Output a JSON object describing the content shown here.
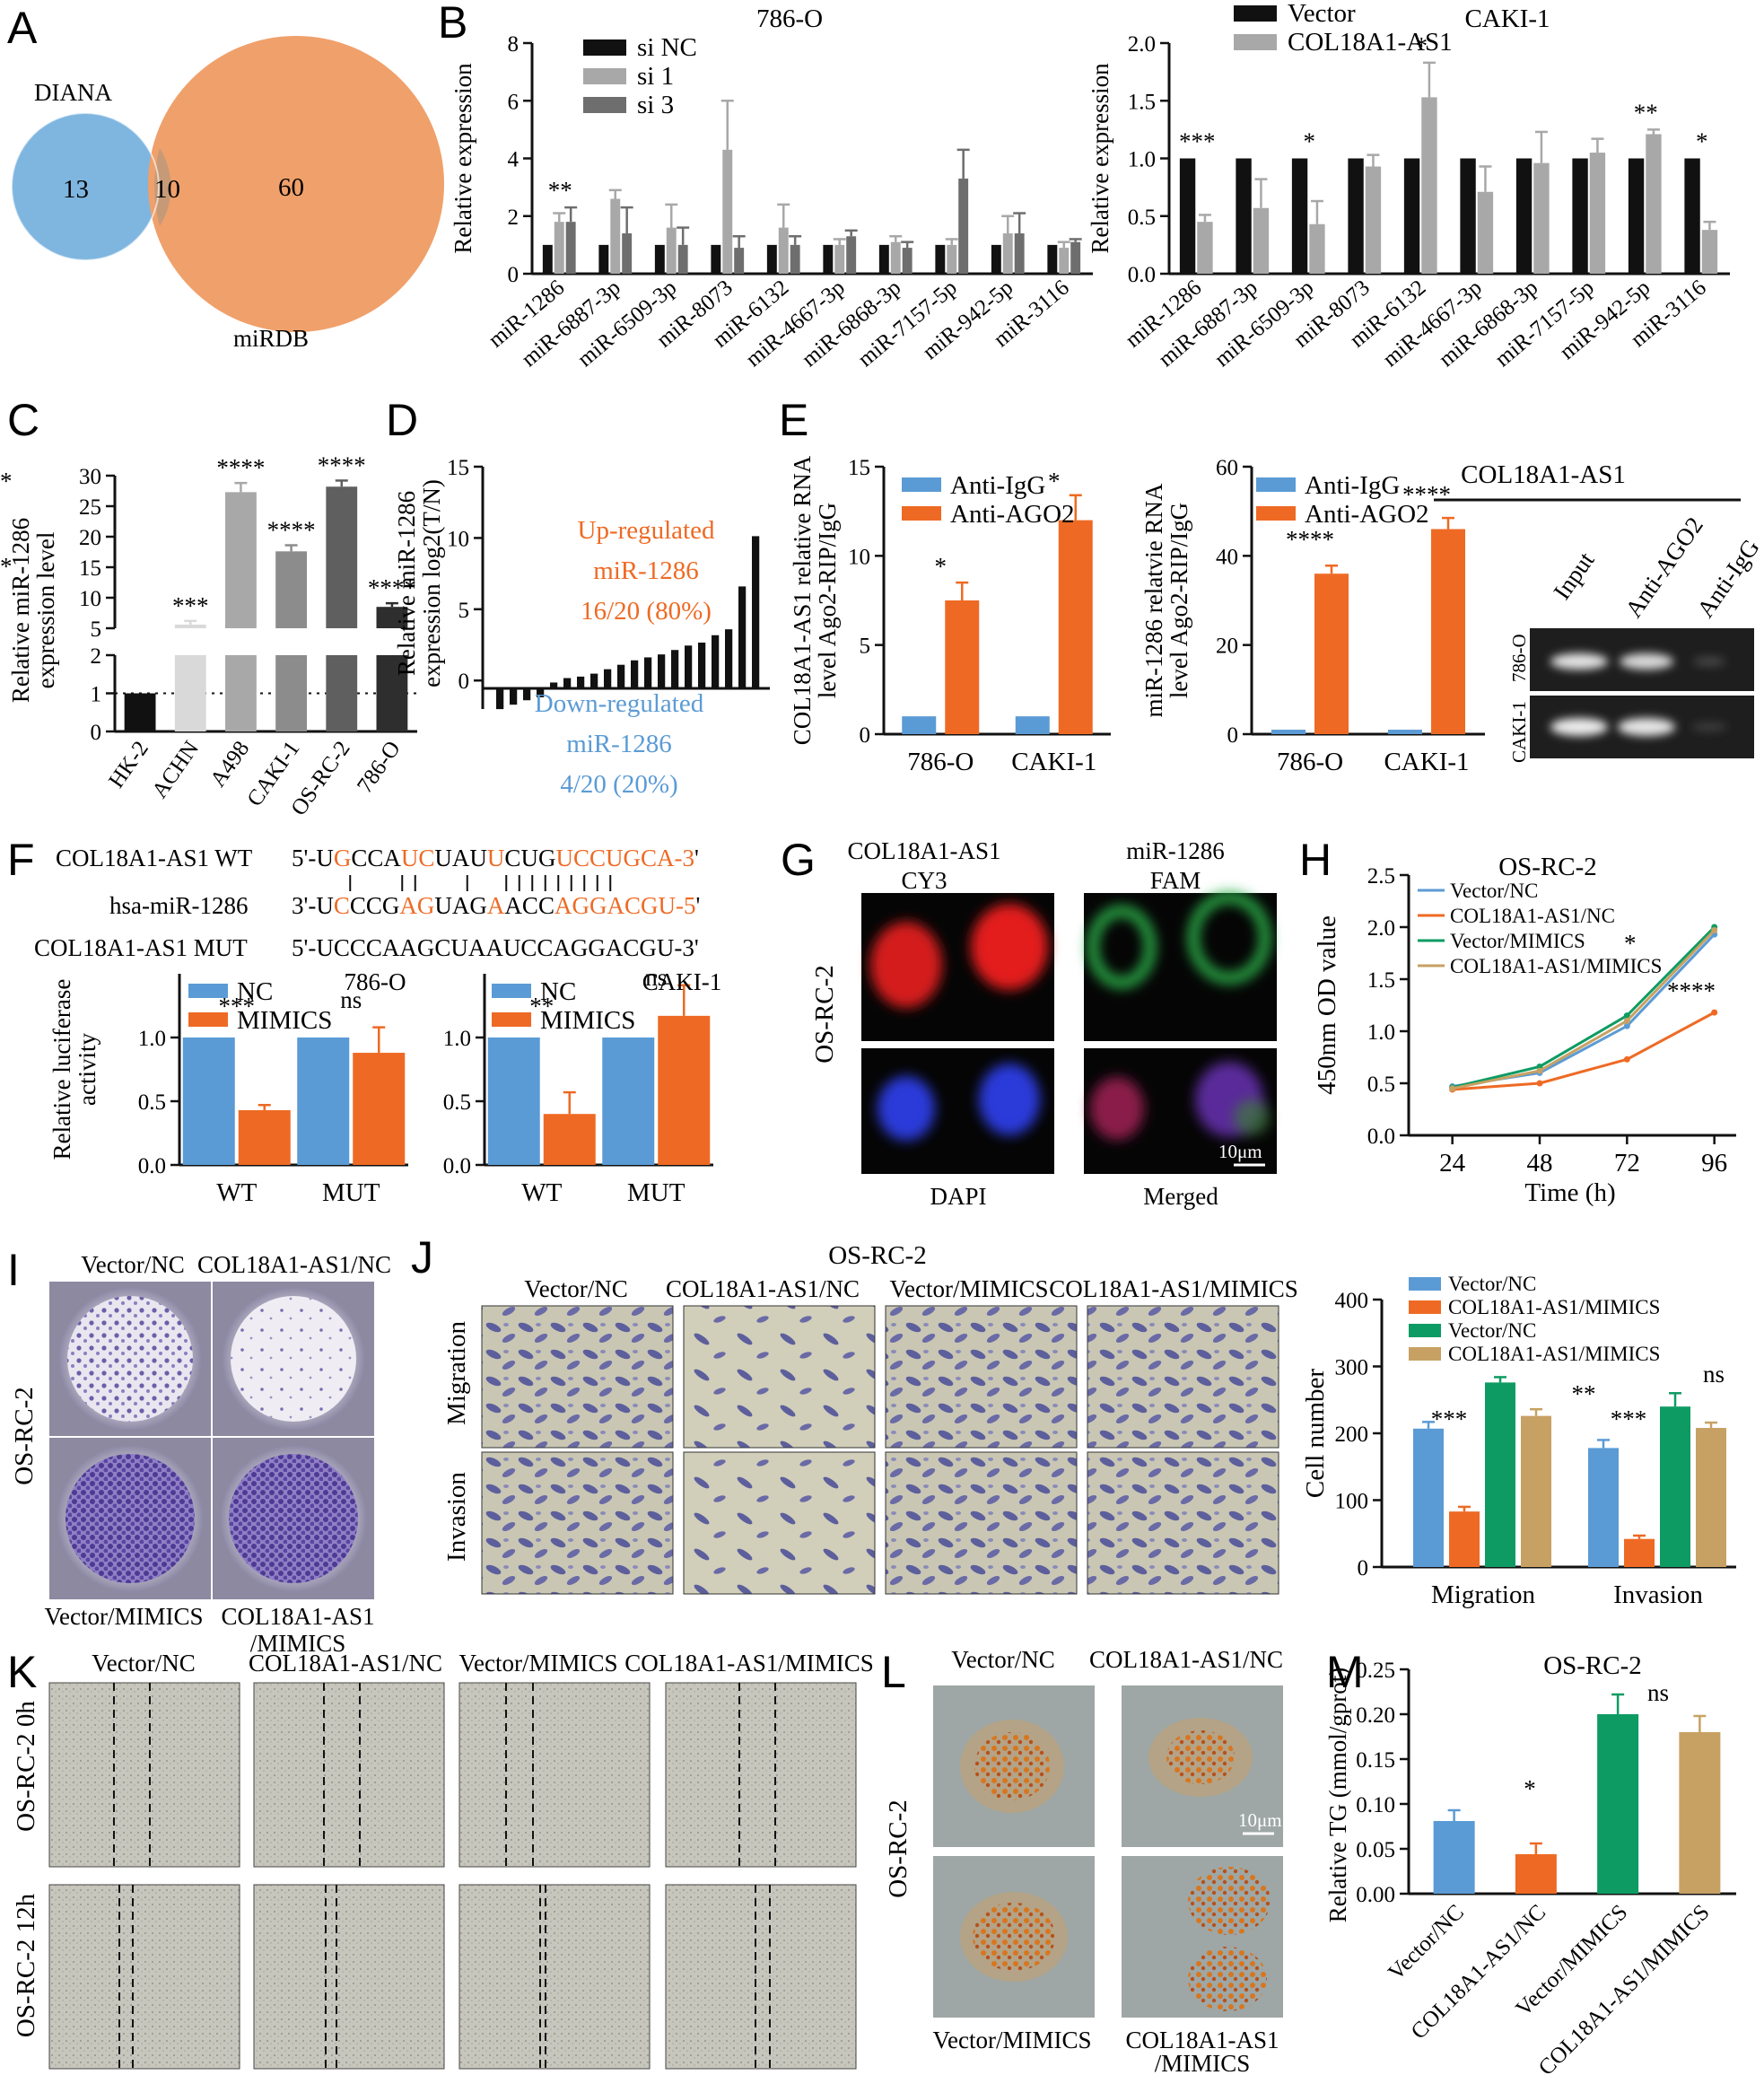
{
  "colors": {
    "black": "#111111",
    "light_gray": "#a8a8a8",
    "dark_gray": "#6e6e6e",
    "blue": "#5b9bd5",
    "orange": "#ee6a24",
    "green": "#0e9b63",
    "tan": "#c7a163",
    "venn_blue": "#7fb6e0",
    "venn_orange": "#f0a06b",
    "gel_bg": "#1e1e1e",
    "stain_purple": "#6c5fa8"
  },
  "panels": {
    "A": {
      "letter": "A",
      "left_label": "DIANA",
      "right_label": "miRDB",
      "left_only": "13",
      "overlap": "10",
      "right_only": "60"
    },
    "B": {
      "letter": "B"
    },
    "C": {
      "letter": "C"
    },
    "D": {
      "letter": "D"
    },
    "E": {
      "letter": "E"
    },
    "F": {
      "letter": "F",
      "seq_rows": [
        {
          "label": "COL18A1-AS1 WT",
          "seq": "5'-UGCCAUCUAUUCUGUCCUGCA-3'"
        },
        {
          "label": "hsa-miR-1286",
          "seq": "3'-UCCCGAGUAGAACCAGGACGU-5'"
        },
        {
          "label": "COL18A1-AS1 MUT",
          "seq": "5'-UCCCAAGCUAAUCCAGGACGU-3'"
        }
      ]
    },
    "G": {
      "letter": "G",
      "side_label": "OS-RC-2",
      "col_top": [
        "COL18A1-AS1",
        "miR-1286"
      ],
      "col_sub": [
        "CY3",
        "FAM"
      ],
      "col_bottom": [
        "DAPI",
        "Merged"
      ],
      "scale": "10μm"
    },
    "H": {
      "letter": "H"
    },
    "I": {
      "letter": "I",
      "side_label": "OS-RC-2",
      "top": [
        "Vector/NC",
        "COL18A1-AS1/NC"
      ],
      "bottom": [
        "Vector/MIMICS",
        "COL18A1-AS1",
        "/MIMICS"
      ]
    },
    "J": {
      "letter": "J",
      "title": "OS-RC-2",
      "cols": [
        "Vector/NC",
        "COL18A1-AS1/NC",
        "Vector/MIMICS",
        "COL18A1-AS1/MIMICS"
      ],
      "rows": [
        "Migration",
        "Invasion"
      ]
    },
    "K": {
      "letter": "K",
      "cols": [
        "Vector/NC",
        "COL18A1-AS1/NC",
        "Vector/MIMICS",
        "COL18A1-AS1/MIMICS"
      ],
      "rows": [
        "OS-RC-2 0h",
        "OS-RC-2 12h"
      ]
    },
    "L": {
      "letter": "L",
      "side_label": "OS-RC-2",
      "top": [
        "Vector/NC",
        "COL18A1-AS1/NC"
      ],
      "bottom": [
        "Vector/MIMICS",
        "COL18A1-AS1",
        "/MIMICS"
      ],
      "scale": "10μm"
    },
    "M": {
      "letter": "M"
    },
    "E_gel": {
      "title": "COL18A1-AS1",
      "lanes": [
        "Input",
        "Anti-AGO2",
        "Anti-IgG"
      ],
      "rows": [
        "786-O",
        "CAKI-1"
      ]
    }
  },
  "chart_data": [
    {
      "id": "B1",
      "type": "bar",
      "title": "786-O",
      "ylabel": "Relative expression",
      "ylim": [
        0,
        8
      ],
      "yticks": [
        0,
        2,
        4,
        6,
        8
      ],
      "categories": [
        "miR-1286",
        "miR-6887-3p",
        "miR-6509-3p",
        "miR-8073",
        "miR-6132",
        "miR-4667-3p",
        "miR-6868-3p",
        "miR-7157-5p",
        "miR-942-5p",
        "miR-3116"
      ],
      "series": [
        {
          "name": "si NC",
          "values": [
            1,
            1,
            1,
            1,
            1,
            1,
            1,
            1,
            1,
            1
          ],
          "errors": [
            0,
            0,
            0,
            0,
            0,
            0,
            0,
            0,
            0,
            0
          ]
        },
        {
          "name": "si 1",
          "values": [
            1.8,
            2.6,
            1.6,
            4.3,
            1.6,
            1.0,
            1.1,
            1.0,
            1.4,
            0.9
          ],
          "errors": [
            0.3,
            0.3,
            0.8,
            1.7,
            0.8,
            0.2,
            0.2,
            0.2,
            0.6,
            0.2
          ]
        },
        {
          "name": "si 3",
          "values": [
            1.8,
            1.4,
            1.0,
            0.9,
            1.0,
            1.3,
            0.9,
            3.3,
            1.4,
            1.1
          ],
          "errors": [
            0.5,
            0.9,
            0.6,
            0.4,
            0.3,
            0.2,
            0.2,
            1.0,
            0.7,
            0.1
          ]
        }
      ],
      "annotations": [
        {
          "category": 0,
          "text": "**"
        }
      ]
    },
    {
      "id": "B2",
      "type": "bar",
      "title": "CAKI-1",
      "ylabel": "Relative expression",
      "ylim": [
        0,
        2.0
      ],
      "yticks": [
        "0.0",
        "0.5",
        "1.0",
        "1.5",
        "2.0"
      ],
      "categories": [
        "miR-1286",
        "miR-6887-3p",
        "miR-6509-3p",
        "miR-8073",
        "miR-6132",
        "miR-4667-3p",
        "miR-6868-3p",
        "miR-7157-5p",
        "miR-942-5p",
        "miR-3116"
      ],
      "series": [
        {
          "name": "Vector",
          "values": [
            1,
            1,
            1,
            1,
            1,
            1,
            1,
            1,
            1,
            1
          ],
          "errors": [
            0,
            0,
            0,
            0,
            0,
            0,
            0,
            0,
            0,
            0
          ]
        },
        {
          "name": "COL18A1-AS1",
          "values": [
            0.45,
            0.57,
            0.43,
            0.93,
            1.53,
            0.71,
            0.96,
            1.05,
            1.21,
            0.38
          ],
          "errors": [
            0.06,
            0.25,
            0.2,
            0.1,
            0.3,
            0.22,
            0.27,
            0.12,
            0.04,
            0.07
          ]
        }
      ],
      "annotations": [
        {
          "category": 0,
          "text": "***"
        },
        {
          "category": 2,
          "text": "*"
        },
        {
          "category": 4,
          "text": "*"
        },
        {
          "category": 8,
          "text": "**"
        },
        {
          "category": 9,
          "text": "*"
        }
      ]
    },
    {
      "id": "C",
      "type": "bar",
      "ylabel_lines": [
        "Relative miR-1286",
        "expression level"
      ],
      "categories": [
        "HK-2",
        "ACHN",
        "A498",
        "CAKI-1",
        "OS-RC-2",
        "786-O"
      ],
      "values": [
        1,
        5.6,
        27.3,
        17.6,
        28.2,
        8.5
      ],
      "errors": [
        0,
        0.6,
        1.5,
        1.0,
        1.0,
        0.6
      ],
      "annotations": [
        "",
        "***",
        "****",
        "****",
        "****",
        "****"
      ],
      "axis_break": {
        "lower": [
          0,
          2
        ],
        "upper": [
          5,
          30
        ]
      },
      "yticks_upper": [
        5,
        10,
        15,
        20,
        25,
        30
      ],
      "yticks_lower": [
        0,
        1,
        2
      ]
    },
    {
      "id": "D",
      "type": "bar",
      "ylabel_lines": [
        "Relative miR-1286",
        "expression log2(T/N)"
      ],
      "ylim": [
        -2,
        15
      ],
      "yticks": [
        0,
        5,
        10,
        15
      ],
      "values": [
        -1.4,
        -1.1,
        -0.8,
        -0.6,
        0.4,
        0.7,
        0.8,
        1.0,
        1.3,
        1.6,
        1.9,
        2.1,
        2.3,
        2.6,
        2.9,
        3.1,
        3.6,
        4.0,
        6.9,
        10.3
      ],
      "up_text": [
        "Up-regulated",
        "miR-1286",
        "16/20 (80%)"
      ],
      "down_text": [
        "Down-regulated",
        "miR-1286",
        "4/20 (20%)"
      ]
    },
    {
      "id": "E1",
      "type": "bar",
      "ylabel_lines": [
        "COL18A1-AS1 relative RNA",
        "level Ago2-RIP/IgG"
      ],
      "ylim": [
        0,
        15
      ],
      "yticks": [
        0,
        5,
        10,
        15
      ],
      "categories": [
        "786-O",
        "CAKI-1"
      ],
      "series": [
        {
          "name": "Anti-IgG",
          "values": [
            1,
            1
          ],
          "errors": [
            0,
            0
          ]
        },
        {
          "name": "Anti-AGO2",
          "values": [
            7.5,
            12.0
          ],
          "errors": [
            1.0,
            1.4
          ]
        }
      ],
      "annotations": [
        "***",
        "***"
      ]
    },
    {
      "id": "E2",
      "type": "bar",
      "ylabel_lines": [
        "miR-1286 relatvie RNA",
        "level Ago2-RIP/IgG"
      ],
      "ylim": [
        0,
        60
      ],
      "yticks": [
        0,
        20,
        40,
        60
      ],
      "categories": [
        "786-O",
        "CAKI-1"
      ],
      "series": [
        {
          "name": "Anti-IgG",
          "values": [
            1,
            1
          ],
          "errors": [
            0,
            0
          ]
        },
        {
          "name": "Anti-AGO2",
          "values": [
            36.0,
            46.0
          ],
          "errors": [
            1.8,
            2.5
          ]
        }
      ],
      "annotations": [
        "****",
        "****"
      ]
    },
    {
      "id": "F1",
      "type": "bar",
      "title": "786-O",
      "ylabel_lines": [
        "Relative luciferase",
        "activity"
      ],
      "ylim": [
        0,
        1.5
      ],
      "yticks": [
        "0.0",
        "0.5",
        "1.0"
      ],
      "categories": [
        "WT",
        "MUT"
      ],
      "series": [
        {
          "name": "NC",
          "values": [
            1,
            1
          ],
          "errors": [
            0,
            0
          ]
        },
        {
          "name": "MIMICS",
          "values": [
            0.43,
            0.88
          ],
          "errors": [
            0.04,
            0.2
          ]
        }
      ],
      "annotations": [
        "***",
        "ns"
      ]
    },
    {
      "id": "F2",
      "type": "bar",
      "title": "CAKI-1",
      "ylim": [
        0,
        1.5
      ],
      "yticks": [
        "0.0",
        "0.5",
        "1.0"
      ],
      "categories": [
        "WT",
        "MUT"
      ],
      "series": [
        {
          "name": "NC",
          "values": [
            1,
            1
          ],
          "errors": [
            0,
            0
          ]
        },
        {
          "name": "MIMICS",
          "values": [
            0.4,
            1.17
          ],
          "errors": [
            0.17,
            0.24
          ]
        }
      ],
      "annotations": [
        "**",
        "ns"
      ]
    },
    {
      "id": "H",
      "type": "line",
      "title": "OS-RC-2",
      "xlabel": "Time (h)",
      "ylabel": "450nm OD value",
      "x": [
        24,
        48,
        72,
        96
      ],
      "ylim": [
        0,
        2.5
      ],
      "yticks": [
        "0.0",
        "0.5",
        "1.0",
        "1.5",
        "2.0",
        "2.5"
      ],
      "series": [
        {
          "name": "Vector/NC",
          "values": [
            0.47,
            0.6,
            1.05,
            1.93
          ],
          "color": "#5b9bd5"
        },
        {
          "name": "COL18A1-AS1/NC",
          "values": [
            0.44,
            0.5,
            0.73,
            1.18
          ],
          "color": "#ee6a24"
        },
        {
          "name": "Vector/MIMICS",
          "values": [
            0.46,
            0.66,
            1.15,
            2.0
          ],
          "color": "#0e9b63"
        },
        {
          "name": "COL18A1-AS1/MIMICS",
          "values": [
            0.45,
            0.62,
            1.1,
            1.97
          ],
          "color": "#c7a163"
        }
      ],
      "annotations": [
        "*",
        "****"
      ]
    },
    {
      "id": "J",
      "type": "bar",
      "ylabel": "Cell number",
      "ylim": [
        0,
        400
      ],
      "yticks": [
        0,
        100,
        200,
        300,
        400
      ],
      "categories": [
        "Migration",
        "Invasion"
      ],
      "series": [
        {
          "name": "Vector/NC",
          "values": [
            207,
            178
          ],
          "errors": [
            10,
            12
          ],
          "color": "#5b9bd5"
        },
        {
          "name": "COL18A1-AS1/MIMICS",
          "values": [
            83,
            42
          ],
          "errors": [
            7,
            5
          ],
          "color": "#ee6a24"
        },
        {
          "name": "Vector/NC",
          "values": [
            276,
            240
          ],
          "errors": [
            8,
            20
          ],
          "color": "#0e9b63"
        },
        {
          "name": "COL18A1-AS1/MIMICS",
          "values": [
            226,
            208
          ],
          "errors": [
            10,
            8
          ],
          "color": "#c7a163"
        }
      ],
      "annotations": [
        "***",
        "**",
        "***",
        "ns"
      ]
    },
    {
      "id": "M",
      "type": "bar",
      "title": "OS-RC-2",
      "ylabel": "Relative TG (mmol/gprot)",
      "ylim": [
        0,
        0.25
      ],
      "yticks": [
        "0.00",
        "0.05",
        "0.10",
        "0.15",
        "0.20",
        "0.25"
      ],
      "categories": [
        "Vector/NC",
        "COL18A1-AS1/NC",
        "Vector/MIMICS",
        "COL18A1-AS1/MIMICS"
      ],
      "values": [
        0.081,
        0.044,
        0.2,
        0.18
      ],
      "errors": [
        0.012,
        0.012,
        0.022,
        0.018
      ],
      "colors": [
        "#5b9bd5",
        "#ee6a24",
        "#0e9b63",
        "#c7a163"
      ],
      "annotations": [
        "*",
        "ns"
      ]
    }
  ]
}
